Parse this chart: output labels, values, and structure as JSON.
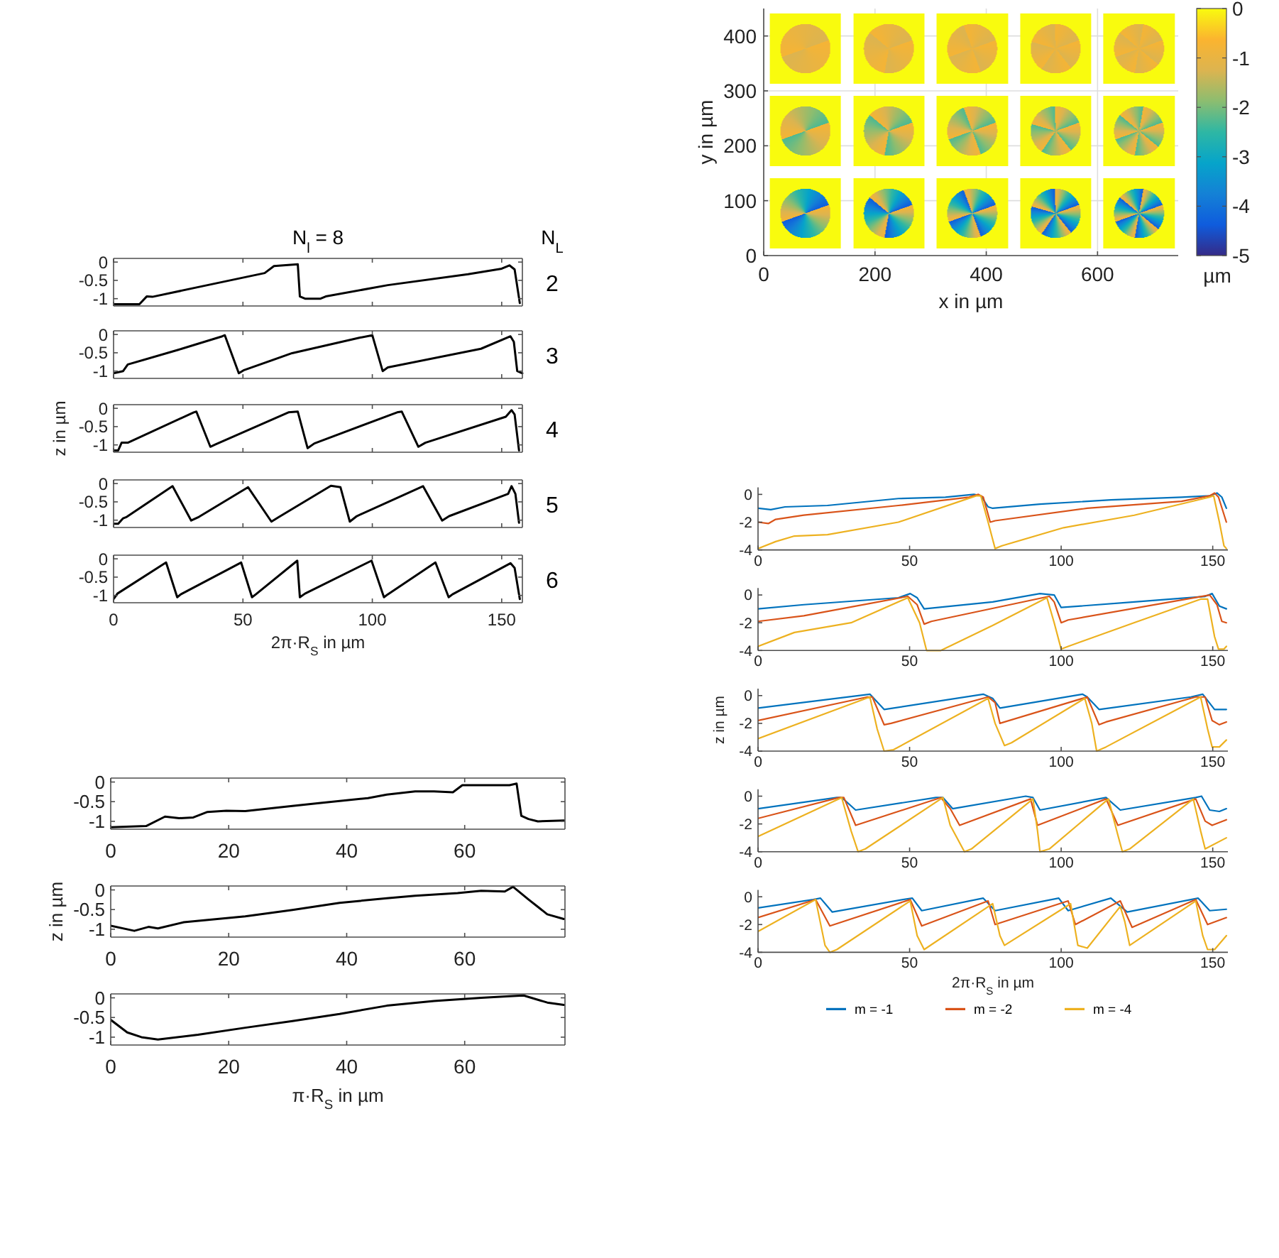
{
  "chart_data": [
    {
      "type": "scatter",
      "xlabel": "x in µm",
      "ylabel": "y in µm",
      "clabel": "µm",
      "xlim": [
        0,
        745
      ],
      "ylim": [
        0,
        450
      ],
      "xticks": [
        0,
        200,
        400,
        600
      ],
      "yticks": [
        0,
        100,
        200,
        300,
        400
      ],
      "clim": [
        -5,
        0
      ],
      "cticks": [
        0,
        -1,
        -2,
        -3,
        -4,
        -5
      ],
      "colors": [
        "#352a87",
        "#0f5cdd",
        "#1481d6",
        "#06a4ca",
        "#2eb7a4",
        "#8cbd70",
        "#dcb450",
        "#fbb42f",
        "#f9fb0e"
      ],
      "grid": true
    },
    {
      "type": "line",
      "title": "N$_{l}$ = 8",
      "annotations": [
        "N$_{L}$",
        "2"
      ],
      "xlim": [
        0,
        158
      ],
      "ylim": [
        -1.2,
        0.1
      ],
      "xticks": [
        0,
        50,
        100,
        150
      ],
      "yticks": [
        0,
        -0.5,
        -1
      ],
      "tick_labels": "y",
      "series": [
        {
          "color": "#000000",
          "x": [
            0,
            10,
            12.8,
            15,
            35,
            58.4,
            62,
            71.2,
            72,
            74,
            80,
            82,
            106,
            137,
            150,
            153,
            155,
            157
          ],
          "values": [
            -1.15,
            -1.15,
            -0.94,
            -0.95,
            -0.65,
            -0.3,
            -0.11,
            -0.06,
            -0.94,
            -1.0,
            -1.0,
            -0.94,
            -0.63,
            -0.33,
            -0.18,
            -0.09,
            -0.2,
            -1.12
          ]
        }
      ]
    },
    {
      "type": "line",
      "annotations": [
        "3"
      ],
      "xlim": [
        0,
        158
      ],
      "ylim": [
        -1.2,
        0.1
      ],
      "xticks": [
        0,
        50,
        100,
        150
      ],
      "yticks": [
        0,
        -0.5,
        -1
      ],
      "tick_labels": "y",
      "series": [
        {
          "color": "#000000",
          "x": [
            0,
            3.7,
            5.5,
            25,
            42,
            43,
            48.4,
            50.2,
            69,
            95,
            100,
            104,
            106,
            142,
            153.4,
            154.7,
            156,
            158
          ],
          "values": [
            -1.06,
            -1.0,
            -0.82,
            -0.42,
            -0.05,
            -0.02,
            -1.06,
            -0.98,
            -0.51,
            -0.09,
            -0.02,
            -1.0,
            -0.9,
            -0.39,
            -0.05,
            -0.2,
            -1.0,
            -1.06
          ]
        }
      ]
    },
    {
      "type": "line",
      "ylabel": "z in µm",
      "annotations": [
        "4"
      ],
      "xlim": [
        0,
        158
      ],
      "ylim": [
        -1.2,
        0.1
      ],
      "xticks": [
        0,
        50,
        100,
        150
      ],
      "yticks": [
        0,
        -0.5,
        -1
      ],
      "tick_labels": "y",
      "series": [
        {
          "color": "#000000",
          "x": [
            0,
            1.8,
            3.1,
            5.5,
            31,
            32,
            37.4,
            39.3,
            67.6,
            71.2,
            75,
            77.6,
            109.6,
            111.4,
            117.8,
            120.5,
            151.6,
            153.8,
            155,
            156.7
          ],
          "values": [
            -1.15,
            -1.15,
            -0.94,
            -0.94,
            -0.11,
            -0.09,
            -1.05,
            -0.99,
            -0.11,
            -0.09,
            -1.09,
            -0.96,
            -0.11,
            -0.09,
            -1.05,
            -0.94,
            -0.23,
            -0.05,
            -0.17,
            -1.15
          ]
        }
      ]
    },
    {
      "type": "line",
      "annotations": [
        "5"
      ],
      "xlim": [
        0,
        158
      ],
      "ylim": [
        -1.2,
        0.1
      ],
      "xticks": [
        0,
        50,
        100,
        150
      ],
      "yticks": [
        0,
        -0.5,
        -1
      ],
      "tick_labels": "y",
      "series": [
        {
          "color": "#000000",
          "x": [
            0,
            1.8,
            3.7,
            5.1,
            22.8,
            30,
            33,
            52,
            61,
            64,
            84,
            87.7,
            91.3,
            94,
            119.6,
            127,
            129.7,
            152.5,
            153.8,
            155.3,
            156.7
          ],
          "values": [
            -1.1,
            -1.1,
            -0.95,
            -0.91,
            -0.07,
            -1.01,
            -0.91,
            -0.1,
            -1.04,
            -0.91,
            -0.06,
            -0.1,
            -1.04,
            -0.89,
            -0.07,
            -1.01,
            -0.89,
            -0.28,
            -0.07,
            -0.28,
            -1.07
          ]
        }
      ]
    },
    {
      "type": "line",
      "xlabel": "2π·R$_{S}$ in µm",
      "annotations": [
        "6"
      ],
      "xlim": [
        0,
        158
      ],
      "ylim": [
        -1.2,
        0.1
      ],
      "xticks": [
        0,
        50,
        100,
        150
      ],
      "yticks": [
        0,
        -0.5,
        -1
      ],
      "series": [
        {
          "color": "#000000",
          "x": [
            0,
            1.5,
            20.3,
            24.6,
            26,
            49.3,
            53.5,
            55,
            71,
            72,
            74,
            99.7,
            104.5,
            106,
            124.4,
            129.5,
            131,
            153.4,
            155,
            157
          ],
          "values": [
            -1.1,
            -0.95,
            -0.1,
            -1.05,
            -0.97,
            -0.1,
            -1.05,
            -0.97,
            -0.05,
            -1.05,
            -0.95,
            -0.05,
            -1.05,
            -0.97,
            -0.1,
            -1.05,
            -0.97,
            -0.12,
            -0.25,
            -1.1
          ]
        }
      ]
    },
    {
      "type": "line",
      "xlim": [
        0,
        155
      ],
      "ylim": [
        -4,
        0.5
      ],
      "xticks": [
        0,
        50,
        100,
        150
      ],
      "yticks": [
        0,
        -2,
        -4
      ],
      "series": [
        {
          "color": "#0072bd",
          "x": [
            0,
            4.2,
            8.9,
            22.9,
            46.3,
            61.8,
            71.2,
            73.5,
            75.9,
            77.4,
            93,
            116.4,
            139.7,
            149,
            151.4,
            153,
            154.5
          ],
          "values": [
            -1,
            -1.1,
            -0.9,
            -0.8,
            -0.3,
            -0.2,
            0,
            -0.1,
            -0.9,
            -1,
            -0.7,
            -0.4,
            -0.2,
            -0.1,
            0.1,
            -0.2,
            -1
          ]
        },
        {
          "color": "#d95319",
          "x": [
            0,
            3.4,
            5.8,
            15.1,
            46.3,
            69.6,
            72.7,
            74.3,
            76.6,
            78.2,
            108.6,
            139.7,
            149,
            150.6,
            151.9,
            154.5
          ],
          "values": [
            -2,
            -2.1,
            -1.8,
            -1.5,
            -0.8,
            -0.2,
            0,
            -0.2,
            -2,
            -1.9,
            -1,
            -0.5,
            -0.1,
            0.1,
            -0.2,
            -2
          ]
        },
        {
          "color": "#edb120",
          "x": [
            0,
            5.8,
            12,
            22.9,
            46.3,
            72,
            73.5,
            75.9,
            78.2,
            80.5,
            100.8,
            124.1,
            149,
            150.3,
            152.2,
            153.7,
            154.5
          ],
          "values": [
            -3.9,
            -3.4,
            -3,
            -2.9,
            -2,
            -0.1,
            -0.1,
            -2,
            -3.9,
            -3.7,
            -2.4,
            -1.5,
            -0.2,
            -0.1,
            -2,
            -3.7,
            -3.9
          ]
        }
      ]
    },
    {
      "type": "line",
      "xlim": [
        0,
        155
      ],
      "ylim": [
        -4,
        0.5
      ],
      "xticks": [
        0,
        50,
        100,
        150
      ],
      "yticks": [
        0,
        -2,
        -4
      ],
      "series": [
        {
          "color": "#0072bd",
          "x": [
            0,
            15.1,
            46.3,
            50.2,
            52.5,
            54.8,
            77.4,
            93,
            97.7,
            100,
            124.1,
            147.5,
            149.8,
            152.2,
            154.5
          ],
          "values": [
            -1,
            -0.7,
            -0.2,
            0.1,
            -0.2,
            -1,
            -0.5,
            0.1,
            0,
            -0.9,
            -0.5,
            -0.1,
            0.1,
            -0.8,
            -1
          ]
        },
        {
          "color": "#d95319",
          "x": [
            0,
            15.1,
            49.4,
            52.5,
            54.8,
            57.2,
            96.1,
            97.7,
            100,
            102.3,
            149,
            151.4,
            153,
            154.5
          ],
          "values": [
            -1.9,
            -1.5,
            -0.1,
            -0.7,
            -2.1,
            -1.9,
            -0.1,
            -0.5,
            -2,
            -1.8,
            0,
            -0.7,
            -1.9,
            -2
          ]
        },
        {
          "color": "#edb120",
          "x": [
            0,
            12,
            30.7,
            49.4,
            53.3,
            55.6,
            60.3,
            77.4,
            95.3,
            97.7,
            100,
            102.3,
            124,
            146,
            148.3,
            150.6,
            151.9,
            153.7,
            154.5
          ],
          "values": [
            -3.7,
            -2.7,
            -2,
            -0.2,
            -2,
            -4,
            -4,
            -2.2,
            -0.2,
            -2,
            -3.9,
            -3.7,
            -2,
            -0.3,
            -0.3,
            -3,
            -3.9,
            -3.9,
            -3.7
          ]
        }
      ]
    },
    {
      "type": "line",
      "ylabel": "z in µm",
      "xlim": [
        0,
        155
      ],
      "ylim": [
        -4,
        0.5
      ],
      "xticks": [
        0,
        50,
        100,
        150
      ],
      "yticks": [
        0,
        -2,
        -4
      ],
      "series": [
        {
          "color": "#0072bd",
          "x": [
            0,
            36.9,
            41.6,
            74.3,
            77.4,
            79.8,
            107,
            108.6,
            112.5,
            142.8,
            146.7,
            150.6,
            154.5
          ],
          "values": [
            -0.9,
            0.1,
            -1,
            0.1,
            -0.2,
            -0.9,
            0.1,
            -0.1,
            -1,
            -0.1,
            0.1,
            -1,
            -1
          ]
        },
        {
          "color": "#d95319",
          "x": [
            0,
            36.1,
            37.7,
            41.6,
            43.9,
            75.9,
            78.2,
            79.8,
            108.6,
            112.5,
            114.8,
            144.4,
            147.5,
            149.8,
            152.2,
            154.5
          ],
          "values": [
            -1.8,
            -0.1,
            -0.1,
            -2.1,
            -2,
            -0.1,
            -0.5,
            -2,
            -0.1,
            -2.1,
            -1.9,
            -0.1,
            -0.1,
            -1.8,
            -2.1,
            -1.9
          ]
        },
        {
          "color": "#edb120",
          "x": [
            0,
            36.9,
            39.3,
            41.6,
            44.7,
            75.9,
            78.2,
            81.3,
            83.6,
            107.8,
            110.1,
            111.7,
            114.8,
            146,
            148.3,
            149.8,
            152.2,
            154.5
          ],
          "values": [
            -3.1,
            -0.1,
            -2.4,
            -4,
            -3.9,
            -0.2,
            -2,
            -3.6,
            -3.4,
            -0.2,
            -2,
            -4,
            -3.7,
            -0.1,
            -2.4,
            -3.7,
            -3.7,
            -3.2
          ]
        }
      ]
    },
    {
      "type": "line",
      "xlim": [
        0,
        155
      ],
      "ylim": [
        -4,
        0.5
      ],
      "xticks": [
        0,
        50,
        100,
        150
      ],
      "yticks": [
        0,
        -2,
        -4
      ],
      "series": [
        {
          "color": "#0072bd",
          "x": [
            0,
            26,
            27.6,
            32.2,
            58.7,
            61,
            64.2,
            88.3,
            90.7,
            93,
            114.8,
            119.5,
            144.4,
            146.3,
            149,
            152.2,
            154.5
          ],
          "values": [
            -0.9,
            -0.1,
            -0.1,
            -1,
            -0.1,
            -0.1,
            -0.9,
            0,
            -0.1,
            -1,
            -0.1,
            -1,
            -0.1,
            0,
            -1,
            -1.1,
            -0.9
          ]
        },
        {
          "color": "#d95319",
          "x": [
            0,
            26.8,
            28.3,
            32.2,
            60.3,
            63.4,
            66.5,
            89.9,
            92.2,
            114.8,
            118.7,
            144.4,
            147.5,
            149.8,
            154.5
          ],
          "values": [
            -1.6,
            -0.1,
            -0.1,
            -2.1,
            -0.1,
            -0.9,
            -2.1,
            -0.2,
            -2.1,
            -0.2,
            -2.1,
            -0.2,
            -1.8,
            -2.1,
            -1.7
          ]
        },
        {
          "color": "#edb120",
          "x": [
            0,
            27.6,
            30.7,
            33,
            35.4,
            61,
            63.4,
            68.1,
            70.4,
            90.7,
            92.2,
            93,
            96.1,
            115.6,
            118.7,
            120.2,
            122.6,
            143.6,
            146,
            147.5,
            154.5
          ],
          "values": [
            -2.9,
            -0.1,
            -2.5,
            -4,
            -3.8,
            -0.1,
            -2.1,
            -4,
            -3.8,
            -0.2,
            -2.5,
            -4,
            -3.8,
            -0.2,
            -2.8,
            -4,
            -3.8,
            -0.2,
            -2.5,
            -3.8,
            -3
          ]
        }
      ]
    },
    {
      "type": "line",
      "xlabel": "2π·R$_{S}$ in µm",
      "legend": "bottom",
      "xlim": [
        0,
        155
      ],
      "ylim": [
        -4,
        0.5
      ],
      "xticks": [
        0,
        50,
        100,
        150
      ],
      "yticks": [
        0,
        -2,
        -4
      ],
      "series": [
        {
          "name": "m = -1",
          "color": "#0072bd",
          "x": [
            0,
            18.2,
            20.6,
            24.5,
            47.8,
            50.9,
            54,
            74.3,
            78.2,
            99.2,
            102.3,
            116.4,
            121.8,
            142.8,
            145.2,
            149,
            154.5
          ],
          "values": [
            -0.8,
            -0.2,
            -0.1,
            -1.1,
            -0.2,
            -0.1,
            -1,
            -0.1,
            -1,
            -0.1,
            -1,
            -0.1,
            -1.1,
            -0.2,
            -0.1,
            -1,
            -0.9
          ]
        },
        {
          "name": "m = -2",
          "color": "#d95319",
          "x": [
            0,
            19,
            23.7,
            50.2,
            54,
            75.9,
            78.2,
            102.3,
            104.7,
            119.5,
            123.4,
            144.4,
            148.3,
            154.5
          ],
          "values": [
            -1.5,
            -0.2,
            -2.1,
            -0.2,
            -2.1,
            -0.3,
            -2,
            -0.3,
            -2,
            -0.3,
            -2.2,
            -0.2,
            -2,
            -1.5
          ]
        },
        {
          "name": "m = -4",
          "color": "#edb120",
          "x": [
            0,
            19,
            22.1,
            23.7,
            26,
            50.2,
            52.5,
            54.8,
            77.4,
            79.8,
            81.3,
            103.1,
            105.5,
            108.6,
            119.5,
            121,
            122.6,
            144.4,
            146.7,
            148.3,
            150.6,
            154.5
          ],
          "values": [
            -2.5,
            -0.2,
            -3.5,
            -4,
            -3.8,
            -0.3,
            -2.8,
            -3.8,
            -0.5,
            -2.8,
            -3.5,
            -0.5,
            -3.5,
            -3.7,
            -0.7,
            -1.8,
            -3.5,
            -0.3,
            -2.8,
            -3.8,
            -3.8,
            -2.8
          ]
        }
      ]
    },
    {
      "type": "line",
      "xlim": [
        0,
        77
      ],
      "ylim": [
        -1.2,
        0.1
      ],
      "xticks": [
        0,
        20,
        40,
        60
      ],
      "yticks": [
        0,
        -0.5,
        -1
      ],
      "series": [
        {
          "color": "#000000",
          "x": [
            0,
            6,
            9.2,
            11.6,
            14,
            16.4,
            19.6,
            22.8,
            30.8,
            35.6,
            43.6,
            46.8,
            51.6,
            54.8,
            58,
            59.6,
            67.6,
            68.8,
            69.6,
            70.8,
            72.4,
            76.8
          ],
          "values": [
            -1.15,
            -1.12,
            -0.88,
            -0.92,
            -0.9,
            -0.76,
            -0.73,
            -0.74,
            -0.61,
            -0.53,
            -0.41,
            -0.32,
            -0.24,
            -0.24,
            -0.26,
            -0.08,
            -0.08,
            -0.04,
            -0.86,
            -0.94,
            -1.0,
            -0.98
          ]
        }
      ]
    },
    {
      "type": "line",
      "ylabel": "z in µm",
      "xlim": [
        0,
        77
      ],
      "ylim": [
        -1.2,
        0.1
      ],
      "xticks": [
        0,
        20,
        40,
        60
      ],
      "yticks": [
        0,
        -0.5,
        -1
      ],
      "series": [
        {
          "color": "#000000",
          "x": [
            0,
            4,
            6.4,
            8,
            12.4,
            22.8,
            30.8,
            38.8,
            46.8,
            51.6,
            58.8,
            62.8,
            66.8,
            68.2,
            70.8,
            74,
            76.8
          ],
          "values": [
            -0.91,
            -1.04,
            -0.94,
            -0.98,
            -0.82,
            -0.67,
            -0.51,
            -0.33,
            -0.21,
            -0.15,
            -0.08,
            -0.02,
            -0.04,
            0.08,
            -0.24,
            -0.62,
            -0.74
          ]
        }
      ]
    },
    {
      "type": "line",
      "xlabel": "π·R$_{S}$ in µm",
      "xlim": [
        0,
        77
      ],
      "ylim": [
        -1.2,
        0.1
      ],
      "xticks": [
        0,
        20,
        40,
        60
      ],
      "yticks": [
        0,
        -0.5,
        -1
      ],
      "series": [
        {
          "color": "#000000",
          "x": [
            0,
            2.8,
            5.2,
            8,
            14.8,
            22.8,
            30.8,
            38.8,
            46.8,
            54.8,
            62.8,
            67.6,
            70,
            74,
            76.8
          ],
          "values": [
            -0.56,
            -0.88,
            -1.0,
            -1.06,
            -0.94,
            -0.76,
            -0.59,
            -0.41,
            -0.2,
            -0.08,
            0,
            0.04,
            0.06,
            -0.12,
            -0.18
          ]
        }
      ]
    }
  ]
}
